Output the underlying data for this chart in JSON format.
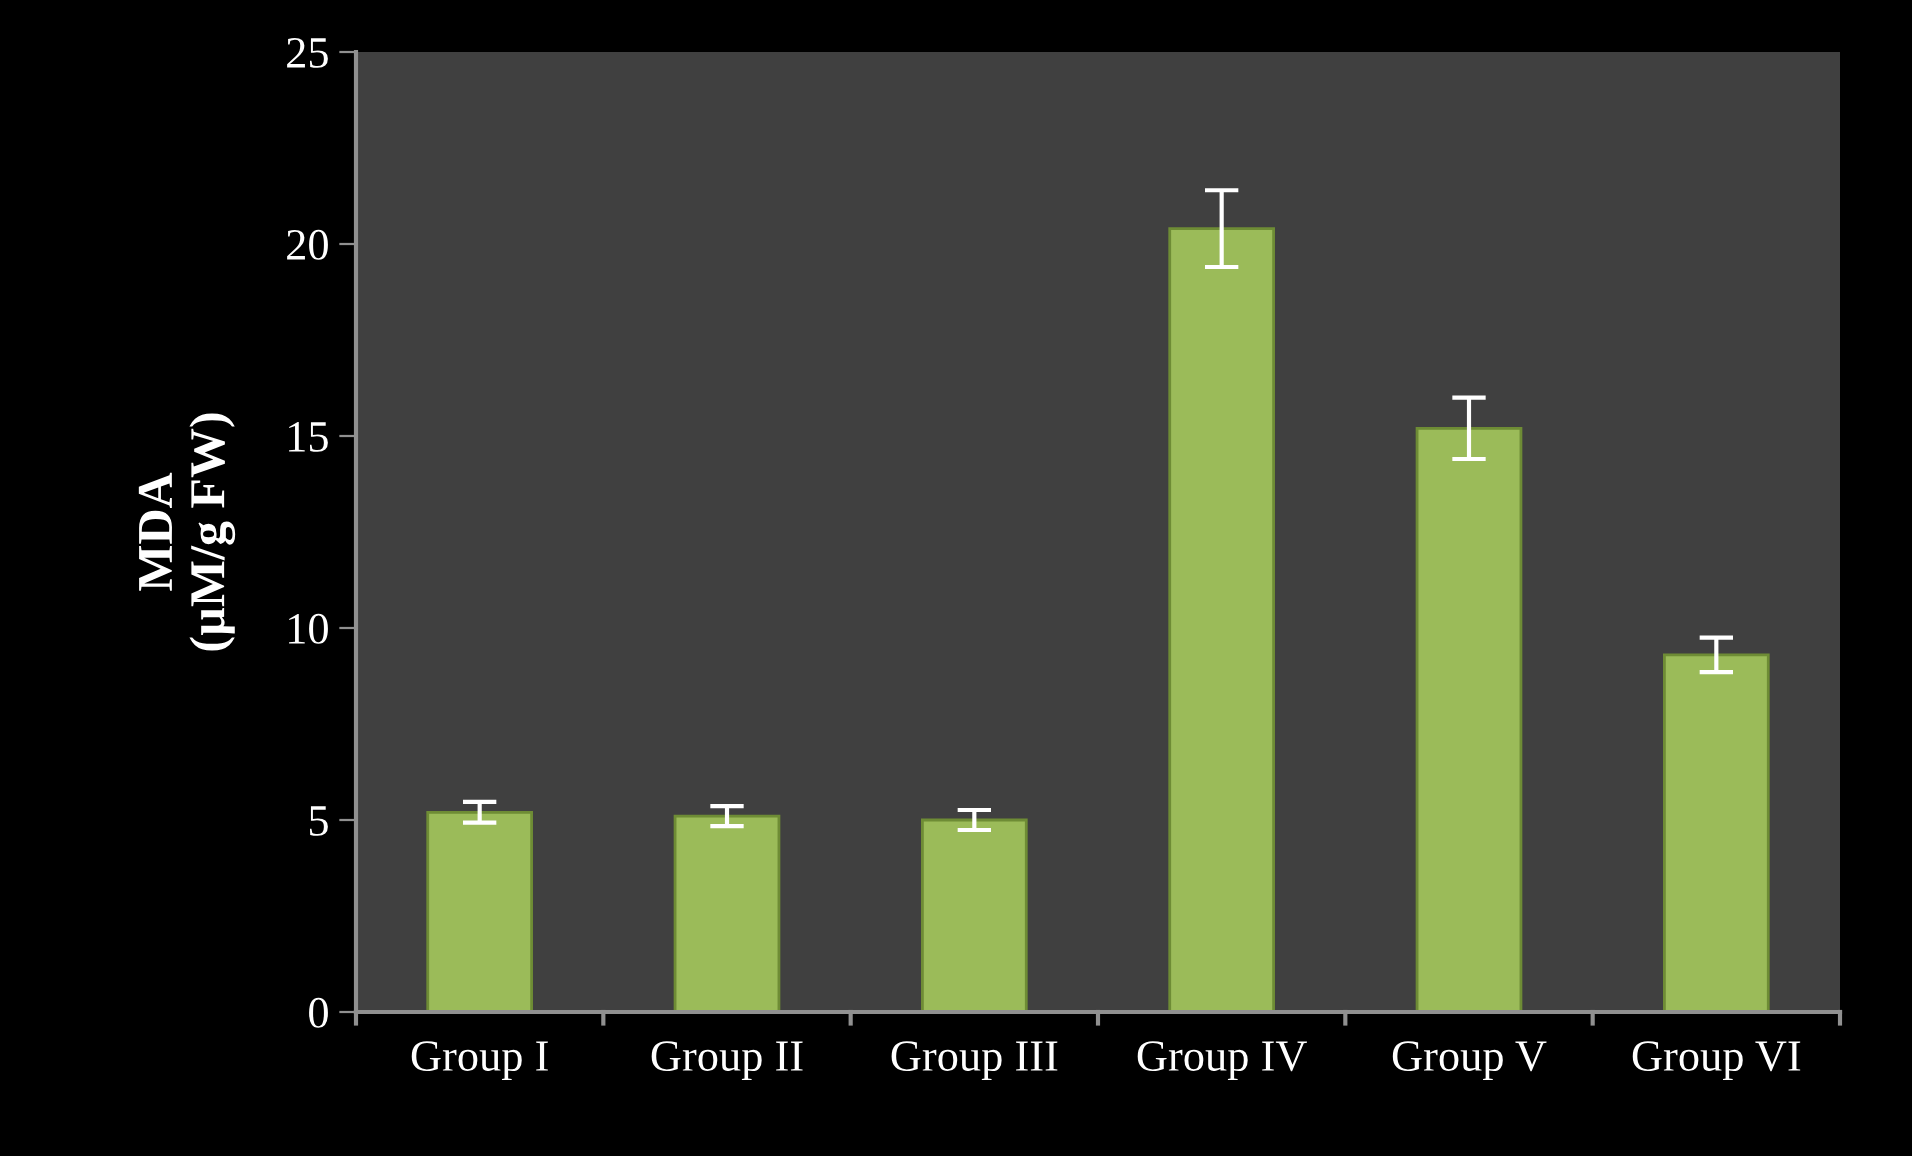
{
  "chart_data": {
    "type": "bar",
    "ylabel": "MDA\n(µM/g FW)",
    "categories": [
      "Group I",
      "Group II",
      "Group III",
      "Group IV",
      "Group V",
      "Group VI"
    ],
    "values": [
      5.2,
      5.1,
      5.0,
      20.4,
      15.2,
      9.3
    ],
    "errors": [
      0.27,
      0.26,
      0.26,
      1.0,
      0.8,
      0.45
    ],
    "color": "#9bbb59",
    "ylim": [
      0,
      25
    ],
    "yticks": [
      0,
      5,
      10,
      15,
      20,
      25
    ],
    "grid": false,
    "legend": false
  }
}
